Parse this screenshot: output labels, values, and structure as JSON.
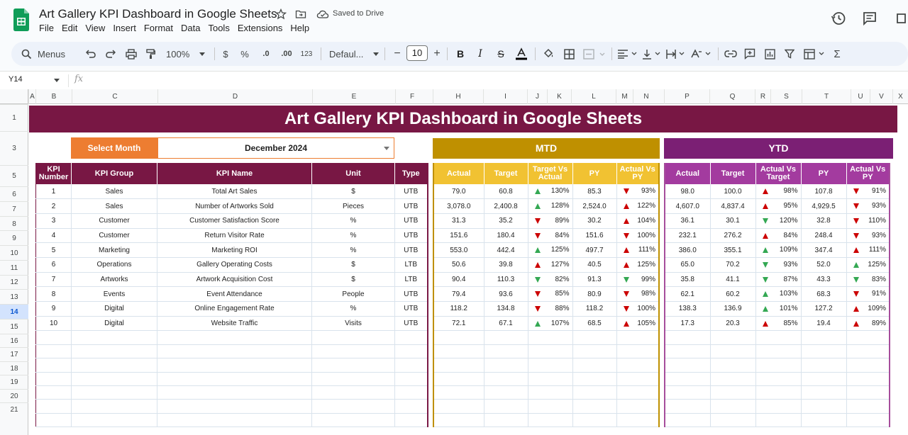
{
  "app": {
    "title": "Art Gallery KPI Dashboard in Google Sheets",
    "saved_status": "Saved to Drive",
    "menu": [
      "File",
      "Edit",
      "View",
      "Insert",
      "Format",
      "Data",
      "Tools",
      "Extensions",
      "Help"
    ]
  },
  "toolbar": {
    "menus_label": "Menus",
    "zoom": "100%",
    "currency": "$",
    "percent": "%",
    "dec_decrease": ".0",
    "dec_increase": ".00",
    "number_format": "123",
    "font": "Defaul...",
    "font_size": "10"
  },
  "formula_bar": {
    "name_box": "Y14",
    "fx": "fx",
    "value": ""
  },
  "columns": [
    "A",
    "B",
    "C",
    "D",
    "E",
    "F",
    "H",
    "I",
    "J",
    "K",
    "L",
    "M",
    "N",
    "P",
    "Q",
    "R",
    "S",
    "T",
    "U",
    "V",
    "X"
  ],
  "rows": [
    "1",
    "3",
    "5",
    "6",
    "7",
    "8",
    "9",
    "10",
    "11",
    "12",
    "13",
    "14",
    "15",
    "16",
    "17",
    "18",
    "19",
    "20",
    "21"
  ],
  "selected_row": "14",
  "sheet": {
    "banner": "Art Gallery KPI Dashboard in Google Sheets",
    "select_month_label": "Select Month",
    "select_month_value": "December 2024",
    "mtd_label": "MTD",
    "ytd_label": "YTD",
    "main_headers": [
      "KPI Number",
      "KPI Group",
      "KPI Name",
      "Unit",
      "Type"
    ],
    "mtd_headers": [
      "Actual",
      "Target",
      "Target Vs Actual",
      "PY",
      "Actual Vs PY"
    ],
    "ytd_headers": [
      "Actual",
      "Target",
      "Actual Vs Target",
      "PY",
      "Actual Vs PY"
    ],
    "kpis": [
      {
        "num": "1",
        "group": "Sales",
        "name": "Total Art Sales",
        "unit": "$",
        "type": "UTB",
        "mtd": {
          "actual": "79.0",
          "target": "60.8",
          "tva": "130%",
          "tva_dir": "up",
          "py": "85.3",
          "avp": "93%",
          "avp_dir": "down"
        },
        "ytd": {
          "actual": "98.0",
          "target": "100.0",
          "avt": "98%",
          "avt_dir": "upred",
          "py": "107.8",
          "avp": "91%",
          "avp_dir": "down"
        }
      },
      {
        "num": "2",
        "group": "Sales",
        "name": "Number of Artworks Sold",
        "unit": "Pieces",
        "type": "UTB",
        "mtd": {
          "actual": "3,078.0",
          "target": "2,400.8",
          "tva": "128%",
          "tva_dir": "up",
          "py": "2,524.0",
          "avp": "122%",
          "avp_dir": "upred"
        },
        "ytd": {
          "actual": "4,607.0",
          "target": "4,837.4",
          "avt": "95%",
          "avt_dir": "upred",
          "py": "4,929.5",
          "avp": "93%",
          "avp_dir": "down"
        }
      },
      {
        "num": "3",
        "group": "Customer",
        "name": "Customer Satisfaction Score",
        "unit": "%",
        "type": "UTB",
        "mtd": {
          "actual": "31.3",
          "target": "35.2",
          "tva": "89%",
          "tva_dir": "down",
          "py": "30.2",
          "avp": "104%",
          "avp_dir": "upred"
        },
        "ytd": {
          "actual": "36.1",
          "target": "30.1",
          "avt": "120%",
          "avt_dir": "downgreen",
          "py": "32.8",
          "avp": "110%",
          "avp_dir": "down"
        }
      },
      {
        "num": "4",
        "group": "Customer",
        "name": "Return Visitor Rate",
        "unit": "%",
        "type": "UTB",
        "mtd": {
          "actual": "151.6",
          "target": "180.4",
          "tva": "84%",
          "tva_dir": "down",
          "py": "151.6",
          "avp": "100%",
          "avp_dir": "down"
        },
        "ytd": {
          "actual": "232.1",
          "target": "276.2",
          "avt": "84%",
          "avt_dir": "upred",
          "py": "248.4",
          "avp": "93%",
          "avp_dir": "down"
        }
      },
      {
        "num": "5",
        "group": "Marketing",
        "name": "Marketing ROI",
        "unit": "%",
        "type": "UTB",
        "mtd": {
          "actual": "553.0",
          "target": "442.4",
          "tva": "125%",
          "tva_dir": "up",
          "py": "497.7",
          "avp": "111%",
          "avp_dir": "upred"
        },
        "ytd": {
          "actual": "386.0",
          "target": "355.1",
          "avt": "109%",
          "avt_dir": "up",
          "py": "347.4",
          "avp": "111%",
          "avp_dir": "upred"
        }
      },
      {
        "num": "6",
        "group": "Operations",
        "name": "Gallery Operating Costs",
        "unit": "$",
        "type": "LTB",
        "mtd": {
          "actual": "50.6",
          "target": "39.8",
          "tva": "127%",
          "tva_dir": "upred",
          "py": "40.5",
          "avp": "125%",
          "avp_dir": "upred"
        },
        "ytd": {
          "actual": "65.0",
          "target": "70.2",
          "avt": "93%",
          "avt_dir": "downgreen",
          "py": "52.0",
          "avp": "125%",
          "avp_dir": "up"
        }
      },
      {
        "num": "7",
        "group": "Artworks",
        "name": "Artwork Acquisition Cost",
        "unit": "$",
        "type": "LTB",
        "mtd": {
          "actual": "90.4",
          "target": "110.3",
          "tva": "82%",
          "tva_dir": "downgreen",
          "py": "91.3",
          "avp": "99%",
          "avp_dir": "downgreen"
        },
        "ytd": {
          "actual": "35.8",
          "target": "41.1",
          "avt": "87%",
          "avt_dir": "downgreen",
          "py": "43.3",
          "avp": "83%",
          "avp_dir": "downgreen"
        }
      },
      {
        "num": "8",
        "group": "Events",
        "name": "Event Attendance",
        "unit": "People",
        "type": "UTB",
        "mtd": {
          "actual": "79.4",
          "target": "93.6",
          "tva": "85%",
          "tva_dir": "down",
          "py": "80.9",
          "avp": "98%",
          "avp_dir": "down"
        },
        "ytd": {
          "actual": "62.1",
          "target": "60.2",
          "avt": "103%",
          "avt_dir": "up",
          "py": "68.3",
          "avp": "91%",
          "avp_dir": "down"
        }
      },
      {
        "num": "9",
        "group": "Digital",
        "name": "Online Engagement Rate",
        "unit": "%",
        "type": "UTB",
        "mtd": {
          "actual": "118.2",
          "target": "134.8",
          "tva": "88%",
          "tva_dir": "down",
          "py": "118.2",
          "avp": "100%",
          "avp_dir": "down"
        },
        "ytd": {
          "actual": "138.3",
          "target": "136.9",
          "avt": "101%",
          "avt_dir": "up",
          "py": "127.2",
          "avp": "109%",
          "avp_dir": "upred"
        }
      },
      {
        "num": "10",
        "group": "Digital",
        "name": "Website Traffic",
        "unit": "Visits",
        "type": "UTB",
        "mtd": {
          "actual": "72.1",
          "target": "67.1",
          "tva": "107%",
          "tva_dir": "up",
          "py": "68.5",
          "avp": "105%",
          "avp_dir": "upred"
        },
        "ytd": {
          "actual": "17.3",
          "target": "20.3",
          "avt": "85%",
          "avt_dir": "upred",
          "py": "19.4",
          "avp": "89%",
          "avp_dir": "upred"
        }
      }
    ],
    "empty_rows": 7
  }
}
